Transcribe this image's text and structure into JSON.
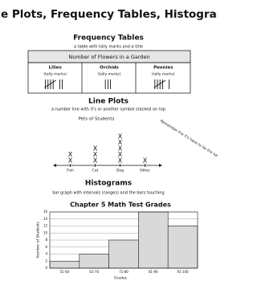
{
  "title": "Line Plots, Frequency Tables, Histograms",
  "frequency_tables": {
    "heading": "Frequency Tables",
    "definition": "a table with tally marks and a title",
    "table": {
      "caption": "Number of Flowers in a Garden",
      "columns": [
        {
          "name": "Lilies",
          "note": "(tally marks)",
          "count": 7
        },
        {
          "name": "Orchids",
          "note": "(tally marks)",
          "count": 3
        },
        {
          "name": "Peonies",
          "note": "(tally marks)",
          "count": 6
        }
      ]
    }
  },
  "line_plots": {
    "heading": "Line Plots",
    "definition": "a number line with X's or another symbol stacked on top",
    "note": "Remember the X's have to be the same size",
    "chart_data": {
      "type": "dot",
      "title": "Pets of Students",
      "symbol": "X",
      "categories": [
        "Fish",
        "Cat",
        "Dog",
        "Other"
      ],
      "values": [
        2,
        3,
        5,
        1
      ]
    }
  },
  "histograms": {
    "heading": "Histograms",
    "definition": "bar graph with intervals (ranges) and the bars touching",
    "chart_data": {
      "type": "histogram",
      "title": "Chapter 5 Math Test Grades",
      "categories": [
        "51-60",
        "61-70",
        "71-80",
        "81-90",
        "91-100"
      ],
      "values": [
        2,
        4,
        8,
        16,
        12
      ],
      "color": "#d9d9d9",
      "ylim": [
        0,
        16
      ],
      "yticks": [
        0,
        2,
        4,
        6,
        8,
        10,
        12,
        14,
        16
      ],
      "grid": true,
      "xlabel": "Grades",
      "ylabel": "Number of Students"
    }
  }
}
